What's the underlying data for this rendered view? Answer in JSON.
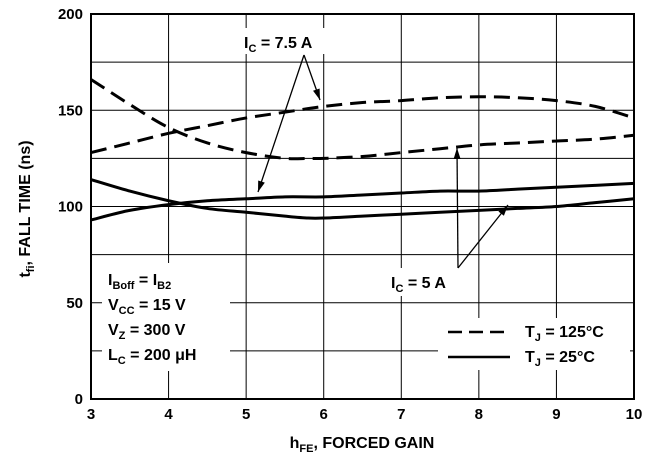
{
  "chart_data": {
    "type": "line",
    "xlabel": {
      "main": "h",
      "sub": "FE",
      "rest": ", FORCED GAIN"
    },
    "ylabel": {
      "main": "t",
      "sub": "fi",
      "rest": ", FALL TIME (ns)"
    },
    "xlim": [
      3,
      10
    ],
    "ylim": [
      0,
      200
    ],
    "xticks": [
      "3",
      "4",
      "5",
      "6",
      "7",
      "8",
      "9",
      "10"
    ],
    "yticks": [
      "0",
      "50",
      "100",
      "150",
      "200"
    ],
    "grid": true,
    "series": [
      {
        "curve": "ic75-125c",
        "style": "dashed",
        "x": [
          3,
          3.5,
          4,
          4.5,
          5,
          5.5,
          5.8,
          6,
          6.5,
          7,
          7.5,
          8,
          8.5,
          9,
          9.5,
          10
        ],
        "y": [
          166,
          153,
          141,
          133,
          128,
          125,
          125,
          125,
          126,
          128,
          130,
          132,
          133,
          134,
          135,
          137
        ]
      },
      {
        "curve": "ic75-25c",
        "style": "dashed",
        "x": [
          3,
          3.5,
          4,
          4.5,
          5,
          5.5,
          6,
          6.5,
          7,
          7.5,
          8,
          8.5,
          9,
          9.5,
          10
        ],
        "y": [
          128,
          133,
          138,
          142,
          146,
          149,
          152,
          154,
          155,
          156.5,
          157,
          156.5,
          155,
          152,
          146
        ]
      },
      {
        "curve": "ic5-125c",
        "style": "solid",
        "x": [
          3,
          3.5,
          4,
          4.5,
          5,
          5.5,
          5.8,
          6,
          6.5,
          7,
          7.5,
          8,
          8.5,
          9,
          9.5,
          10
        ],
        "y": [
          114,
          108,
          103,
          99,
          97,
          95,
          94,
          94,
          95,
          96,
          97,
          98,
          99,
          100,
          102,
          104
        ]
      },
      {
        "curve": "ic5-25c",
        "style": "solid",
        "x": [
          3,
          3.5,
          4,
          4.5,
          5,
          5.5,
          6,
          6.5,
          7,
          7.5,
          8,
          8.5,
          9,
          9.5,
          10
        ],
        "y": [
          93,
          98,
          101,
          103,
          104,
          105,
          105,
          106,
          107,
          108,
          108,
          109,
          110,
          111,
          112
        ]
      }
    ],
    "annotations": {
      "ic75": {
        "main": "I",
        "sub": "C",
        "rest": " = 7.5 A"
      },
      "ic5": {
        "main": "I",
        "sub": "C",
        "rest": " = 5 A"
      },
      "conditions": [
        {
          "main": "I",
          "sub": "Boff",
          "rest": " = I",
          "sub2": "B2"
        },
        {
          "main": "V",
          "sub": "CC",
          "rest": " = 15 V"
        },
        {
          "main": "V",
          "sub": "Z",
          "rest": " = 300 V"
        },
        {
          "main": "L",
          "sub": "C",
          "rest": " = 200 μH"
        }
      ]
    },
    "legend": {
      "placement": "bottom-right",
      "entries": [
        {
          "style": "dashed",
          "main": "T",
          "sub": "J",
          "rest": " = 125°C"
        },
        {
          "style": "solid",
          "main": "T",
          "sub": "J",
          "rest": " = 25°C"
        }
      ]
    }
  }
}
